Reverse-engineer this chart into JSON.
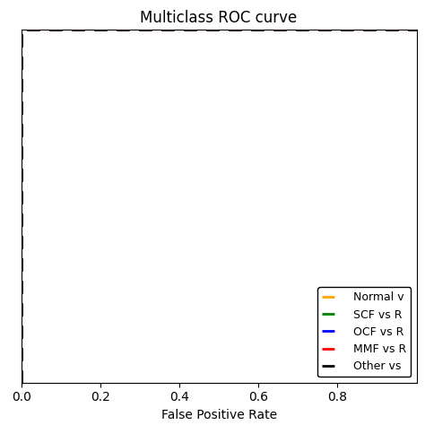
{
  "title": "Multiclass ROC curve",
  "xlabel": "False Positive Rate",
  "ylabel": "",
  "xlim": [
    0.0,
    1.0
  ],
  "ylim": [
    0.0,
    1.0
  ],
  "curves": [
    {
      "label": "Normal v",
      "color": "#FFA500",
      "fpr": [
        0.0,
        0.0,
        1.0
      ],
      "tpr": [
        0.0,
        1.0,
        1.0
      ]
    },
    {
      "label": "SCF vs R",
      "color": "#008000",
      "fpr": [
        0.0,
        0.0,
        1.0
      ],
      "tpr": [
        0.0,
        1.0,
        1.0
      ]
    },
    {
      "label": "OCF vs R",
      "color": "#0000FF",
      "fpr": [
        0.0,
        0.0,
        1.0
      ],
      "tpr": [
        0.0,
        1.0,
        1.0
      ]
    },
    {
      "label": "MMF vs R",
      "color": "#FF0000",
      "fpr": [
        0.0,
        0.0,
        1.0
      ],
      "tpr": [
        0.0,
        1.0,
        1.0
      ]
    },
    {
      "label": "Other vs",
      "color": "#000000",
      "fpr": [
        0.0,
        0.0,
        1.0
      ],
      "tpr": [
        0.0,
        1.0,
        1.0
      ]
    }
  ],
  "legend_loc": "lower right",
  "xticks": [
    0.0,
    0.2,
    0.4,
    0.6,
    0.8
  ],
  "yticks": [],
  "background_color": "#ffffff",
  "title_fontsize": 12,
  "label_fontsize": 10,
  "tick_fontsize": 10,
  "linewidth": 2.0,
  "dash_on": 5,
  "dash_off": 4
}
